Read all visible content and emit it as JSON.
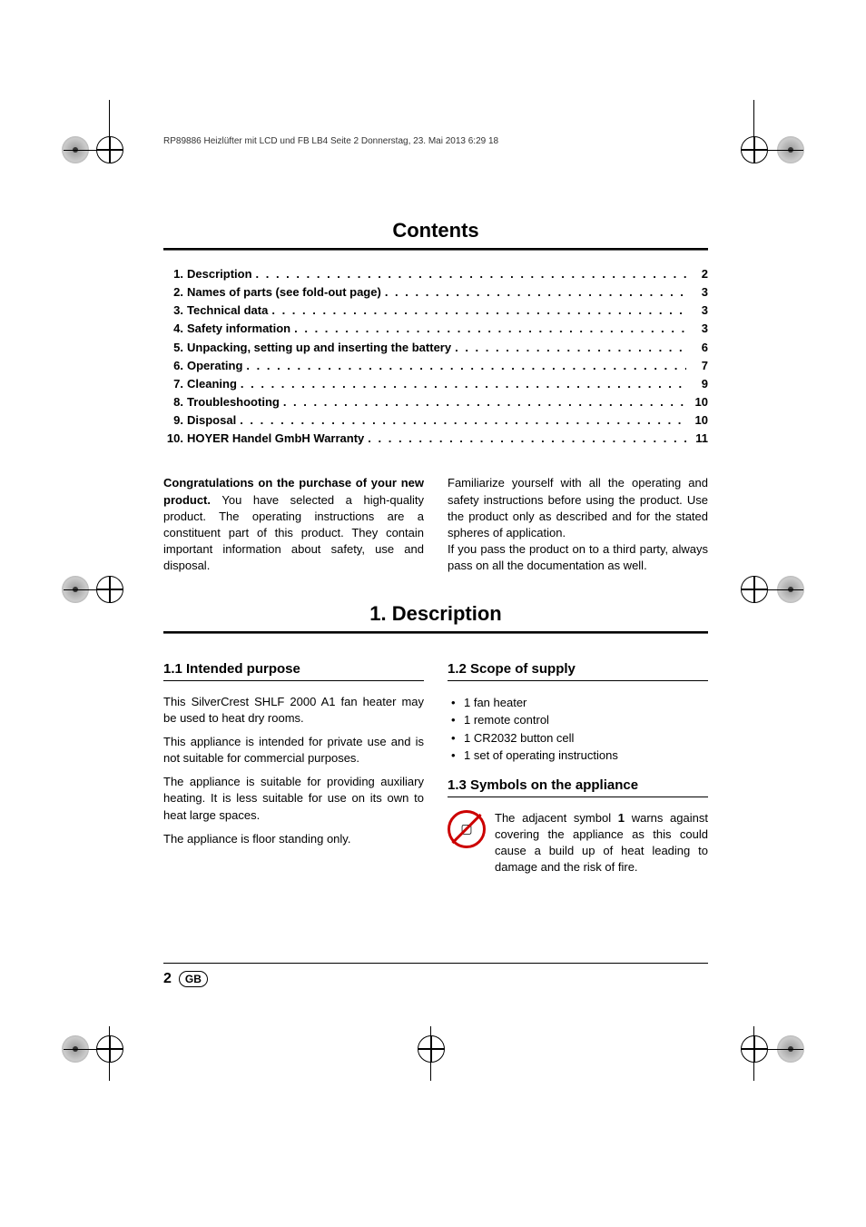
{
  "header_line": "RP89886 Heizlüfter mit LCD und FB LB4  Seite 2  Donnerstag, 23. Mai 2013  6:29 18",
  "contents_title": "Contents",
  "toc": [
    {
      "num": "1.",
      "label": "Description",
      "page": "2"
    },
    {
      "num": "2.",
      "label": "Names of parts (see fold-out page)",
      "page": "3"
    },
    {
      "num": "3.",
      "label": "Technical data",
      "page": "3"
    },
    {
      "num": "4.",
      "label": "Safety information",
      "page": "3"
    },
    {
      "num": "5.",
      "label": "Unpacking, setting up and inserting the battery",
      "page": "6"
    },
    {
      "num": "6.",
      "label": "Operating",
      "page": "7"
    },
    {
      "num": "7.",
      "label": "Cleaning",
      "page": "9"
    },
    {
      "num": "8.",
      "label": "Troubleshooting",
      "page": "10"
    },
    {
      "num": "9.",
      "label": "Disposal",
      "page": "10"
    },
    {
      "num": "10.",
      "label": "HOYER Handel GmbH Warranty",
      "page": "11"
    }
  ],
  "intro": {
    "bold1": "Congratulations on the purchase of your new product.",
    "left": "You have selected a high-quality product. The operating instructions are a constituent part of this product. They contain important information about safety, use and disposal.",
    "right1": "Familiarize yourself with all the operating and safety instructions before using the product. Use the product only as described and for the stated spheres of application.",
    "right2": "If you pass the product on to a third party, always pass on all the documentation as well."
  },
  "section1_title": "1. Description",
  "sub_1_1": "1.1 Intended purpose",
  "sub_1_2": "1.2 Scope of supply",
  "sub_1_3": "1.3 Symbols on the appliance",
  "body_1_1": {
    "p1": "This SilverCrest SHLF 2000 A1 fan heater may be used to heat dry rooms.",
    "p2": "This appliance is intended for private use and is not suitable for commercial purposes.",
    "p3": "The appliance is suitable for providing auxiliary heating. It is less suitable for use on its own to heat large spaces.",
    "p4": "The appliance is floor standing only."
  },
  "supply_items": [
    "1 fan heater",
    "1 remote control",
    "1 CR2032 button cell",
    "1 set of operating instructions"
  ],
  "symbol_text_a": "The adjacent symbol ",
  "symbol_bold": "1",
  "symbol_text_b": " warns against covering the appliance as this could cause a build up of heat leading to damage and the risk of fire.",
  "page_number": "2",
  "gb_label": "GB",
  "colors": {
    "text": "#000000",
    "warn_red": "#cc0000",
    "background": "#ffffff"
  }
}
